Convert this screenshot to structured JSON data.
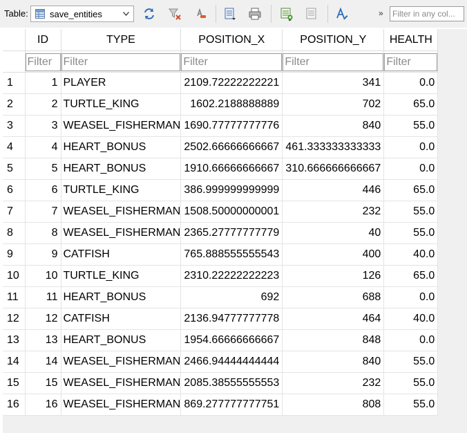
{
  "toolbar": {
    "table_label": "Table:",
    "table_name": "save_entities",
    "more_glyph": "»",
    "filter_placeholder": "Filter in any col..."
  },
  "grid": {
    "columns": [
      "ID",
      "TYPE",
      "POSITION_X",
      "POSITION_Y",
      "HEALTH"
    ],
    "filter_placeholder": "Filter",
    "rows": [
      {
        "n": "1",
        "id": "1",
        "type": "PLAYER",
        "x": "2109.72222222221",
        "y": "341",
        "health": "0.0"
      },
      {
        "n": "2",
        "id": "2",
        "type": "TURTLE_KING",
        "x": "1602.2188888889",
        "y": "702",
        "health": "65.0"
      },
      {
        "n": "3",
        "id": "3",
        "type": "WEASEL_FISHERMAN",
        "x": "1690.77777777776",
        "y": "840",
        "health": "55.0"
      },
      {
        "n": "4",
        "id": "4",
        "type": "HEART_BONUS",
        "x": "2502.66666666667",
        "y": "461.333333333333",
        "health": "0.0"
      },
      {
        "n": "5",
        "id": "5",
        "type": "HEART_BONUS",
        "x": "1910.66666666667",
        "y": "310.666666666667",
        "health": "0.0"
      },
      {
        "n": "6",
        "id": "6",
        "type": "TURTLE_KING",
        "x": "386.999999999999",
        "y": "446",
        "health": "65.0"
      },
      {
        "n": "7",
        "id": "7",
        "type": "WEASEL_FISHERMAN",
        "x": "1508.50000000001",
        "y": "232",
        "health": "55.0"
      },
      {
        "n": "8",
        "id": "8",
        "type": "WEASEL_FISHERMAN",
        "x": "2365.27777777779",
        "y": "40",
        "health": "55.0"
      },
      {
        "n": "9",
        "id": "9",
        "type": "CATFISH",
        "x": "765.888555555543",
        "y": "400",
        "health": "40.0"
      },
      {
        "n": "10",
        "id": "10",
        "type": "TURTLE_KING",
        "x": "2310.22222222223",
        "y": "126",
        "health": "65.0"
      },
      {
        "n": "11",
        "id": "11",
        "type": "HEART_BONUS",
        "x": "692",
        "y": "688",
        "health": "0.0"
      },
      {
        "n": "12",
        "id": "12",
        "type": "CATFISH",
        "x": "2136.94777777778",
        "y": "464",
        "health": "40.0"
      },
      {
        "n": "13",
        "id": "13",
        "type": "HEART_BONUS",
        "x": "1954.66666666667",
        "y": "848",
        "health": "0.0"
      },
      {
        "n": "14",
        "id": "14",
        "type": "WEASEL_FISHERMAN",
        "x": "2466.94444444444",
        "y": "840",
        "health": "55.0"
      },
      {
        "n": "15",
        "id": "15",
        "type": "WEASEL_FISHERMAN",
        "x": "2085.38555555553",
        "y": "232",
        "health": "55.0"
      },
      {
        "n": "16",
        "id": "16",
        "type": "WEASEL_FISHERMAN",
        "x": "869.277777777751",
        "y": "808",
        "health": "55.0"
      }
    ]
  }
}
